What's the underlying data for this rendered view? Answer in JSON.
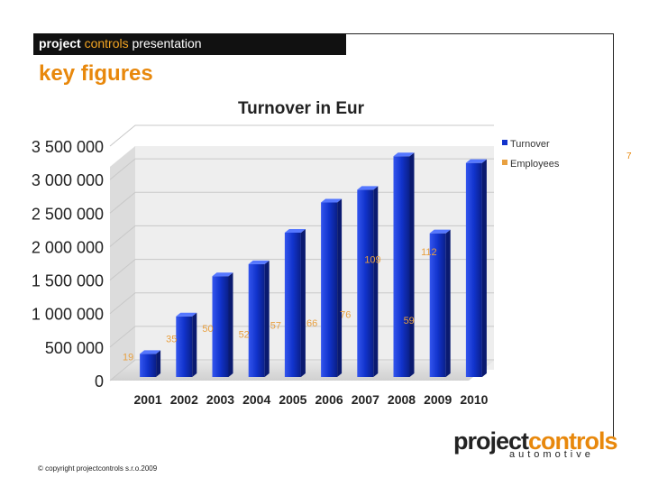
{
  "header": {
    "bold": "project",
    "highlight": "controls",
    "rest": " presentation"
  },
  "section_title": "key figures",
  "page_number": "7",
  "colors": {
    "turnover_bar": "#1133cc",
    "employees_label": "#e8a040",
    "accent": "#e8880c"
  },
  "chart_data": {
    "type": "bar",
    "title": "Turnover in Eur",
    "categories": [
      "2001",
      "2002",
      "2003",
      "2004",
      "2005",
      "2006",
      "2007",
      "2008",
      "2009",
      "2010"
    ],
    "ylim": [
      0,
      3500000
    ],
    "yticks": [
      0,
      500000,
      1000000,
      1500000,
      2000000,
      2500000,
      3000000,
      3500000
    ],
    "ytick_labels": [
      "0",
      "500 000",
      "1 000 000",
      "1 500 000",
      "2 000 000",
      "2 500 000",
      "3 000 000",
      "3 500 000"
    ],
    "legend_position": "top-right",
    "series": [
      {
        "name": "Turnover",
        "type": "bar",
        "values": [
          560000,
          1120000,
          1720000,
          1900000,
          2370000,
          2820000,
          3010000,
          3510000,
          2360000,
          3410000
        ]
      },
      {
        "name": "Employees",
        "type": "label",
        "values": [
          19,
          35,
          50,
          52,
          57,
          66,
          76,
          109,
          59,
          112
        ]
      }
    ]
  },
  "logo": {
    "main_a": "project",
    "main_b": "controls",
    "sub": "automotive"
  },
  "copyright": "© copyright projectcontrols s.r.o.2009"
}
